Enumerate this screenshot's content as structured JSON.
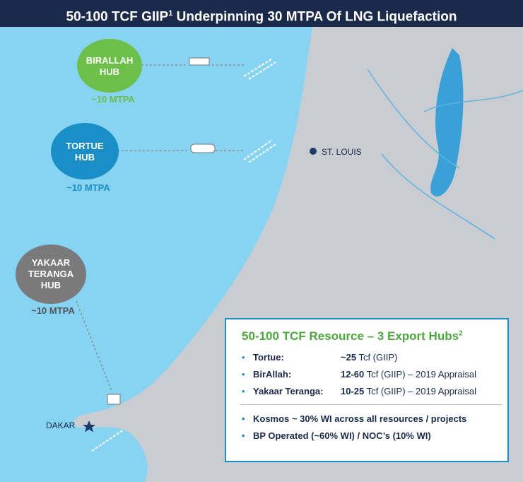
{
  "header": {
    "title": "50-100 TCF GIIP",
    "title_sup": "1",
    "title_rest": "Underpinning 30 MTPA Of LNG Liquefaction"
  },
  "hubs": [
    {
      "name": "BIRALLAH",
      "suffix": "HUB",
      "capacity": "~10 MTPA"
    },
    {
      "name": "TORTUE",
      "suffix": "HUB",
      "capacity": "~10 MTPA"
    },
    {
      "name": "YAKAAR",
      "name2": "TERANGA",
      "suffix": "HUB",
      "capacity": "~10 MTPA"
    }
  ],
  "cities": [
    "ST. LOUIS",
    "DAKAR"
  ],
  "box": {
    "title": "50-100 TCF Resource – 3 Export Hubs",
    "title_sup": "2",
    "resources": [
      {
        "name": "Tortue:",
        "amount": "~25",
        "detail": "Tcf (GIIP)"
      },
      {
        "name": "BirAllah:",
        "amount": "12-60",
        "detail": "Tcf (GIIP)  – 2019 Appraisal"
      },
      {
        "name": "Yakaar Teranga:",
        "amount": "10-25",
        "detail": "Tcf (GIIP) – 2019 Appraisal"
      }
    ],
    "notes": [
      "Kosmos ~ 30% WI across all resources / projects",
      "BP Operated (~60% WI) / NOC’s (10% WI)"
    ]
  }
}
